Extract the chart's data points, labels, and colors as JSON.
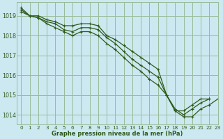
{
  "title": "Graphe pression niveau de la mer (hPa)",
  "bg_color": "#cce8f0",
  "grid_color": "#99bb99",
  "line_color": "#2d5a1b",
  "marker_color": "#2d5a1b",
  "text_color": "#2d5a1b",
  "xlim": [
    -0.5,
    23
  ],
  "ylim": [
    1013.5,
    1019.7
  ],
  "yticks": [
    1014,
    1015,
    1016,
    1017,
    1018,
    1019
  ],
  "xticks": [
    0,
    1,
    2,
    3,
    4,
    5,
    6,
    7,
    8,
    9,
    10,
    11,
    12,
    13,
    14,
    15,
    16,
    17,
    18,
    19,
    20,
    21,
    22,
    23
  ],
  "series": [
    [
      1019.4,
      1019.0,
      1019.0,
      1018.8,
      1018.7,
      1018.5,
      1018.5,
      1018.6,
      1018.6,
      1018.5,
      1018.0,
      1017.8,
      1017.5,
      1017.2,
      1016.9,
      1016.6,
      1016.3,
      1015.0,
      1014.2,
      1014.2,
      1014.5,
      1014.8,
      1014.8,
      null
    ],
    [
      1019.2,
      1019.0,
      1018.9,
      1018.7,
      1018.6,
      1018.3,
      1018.2,
      1018.4,
      1018.4,
      1018.3,
      1017.9,
      1017.6,
      1017.2,
      1016.8,
      1016.5,
      1016.2,
      1015.9,
      1015.0,
      1014.3,
      1014.0,
      1014.3,
      1014.6,
      1014.8,
      null
    ],
    [
      1019.3,
      1019.0,
      1018.9,
      1018.6,
      1018.4,
      1018.2,
      1018.0,
      1018.2,
      1018.2,
      1018.0,
      1017.6,
      1017.3,
      1016.9,
      1016.5,
      1016.2,
      1015.8,
      1015.5,
      1015.0,
      1014.2,
      1013.9,
      1013.9,
      1014.3,
      1014.5,
      1014.8
    ]
  ]
}
